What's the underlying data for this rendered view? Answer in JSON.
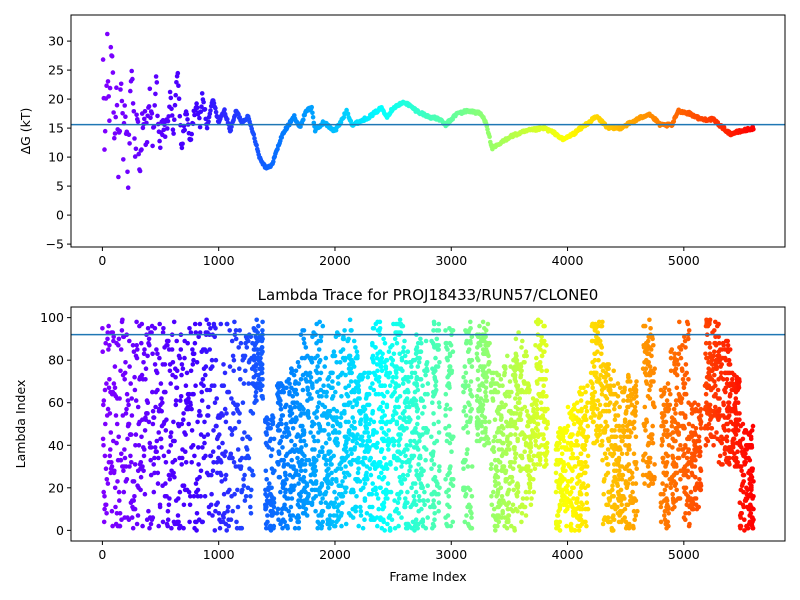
{
  "figure": {
    "colormap": "rainbow",
    "point_color_rule": "colour runs from red at frame 0 to violet at the last frame",
    "colormap_stops": [
      "#ff0000",
      "#ff7f00",
      "#ffff00",
      "#80ff80",
      "#00ffff",
      "#0080ff",
      "#4000ff",
      "#8000ff"
    ],
    "hline_color": "#1f77b4",
    "axes_color": "#000000"
  },
  "chart_data": [
    {
      "type": "scatter",
      "title": "",
      "xlabel": "",
      "ylabel": "ΔG (kT)",
      "xlim": [
        -270,
        5870
      ],
      "ylim": [
        -5.5,
        34.5
      ],
      "xticks": [
        0,
        1000,
        2000,
        3000,
        4000,
        5000
      ],
      "yticks": [
        -5,
        0,
        5,
        10,
        15,
        20,
        25,
        30
      ],
      "hline": 15.6,
      "grid": false,
      "legend": "none",
      "n_frames": 5600,
      "trace_anchors": [
        [
          0,
          34
        ],
        [
          20,
          10
        ],
        [
          40,
          28
        ],
        [
          60,
          18
        ],
        [
          80,
          32
        ],
        [
          100,
          15
        ],
        [
          120,
          22
        ],
        [
          140,
          8
        ],
        [
          160,
          21
        ],
        [
          180,
          11
        ],
        [
          200,
          20
        ],
        [
          220,
          5
        ],
        [
          250,
          27
        ],
        [
          280,
          12
        ],
        [
          300,
          17
        ],
        [
          320,
          5
        ],
        [
          350,
          19
        ],
        [
          380,
          13
        ],
        [
          410,
          20
        ],
        [
          440,
          12
        ],
        [
          460,
          26
        ],
        [
          490,
          10
        ],
        [
          520,
          16
        ],
        [
          550,
          14
        ],
        [
          580,
          20
        ],
        [
          610,
          15
        ],
        [
          650,
          25
        ],
        [
          680,
          12
        ],
        [
          720,
          17
        ],
        [
          760,
          13
        ],
        [
          800,
          19
        ],
        [
          840,
          16
        ],
        [
          860,
          21
        ],
        [
          900,
          15
        ],
        [
          950,
          20
        ],
        [
          1000,
          16
        ],
        [
          1050,
          18
        ],
        [
          1100,
          14.5
        ],
        [
          1150,
          18
        ],
        [
          1200,
          16
        ],
        [
          1250,
          17
        ],
        [
          1300,
          14
        ],
        [
          1350,
          10
        ],
        [
          1400,
          8.3
        ],
        [
          1450,
          8.3
        ],
        [
          1480,
          10
        ],
        [
          1550,
          14
        ],
        [
          1600,
          15.5
        ],
        [
          1650,
          17
        ],
        [
          1700,
          15
        ],
        [
          1750,
          18
        ],
        [
          1800,
          18.5
        ],
        [
          1830,
          14.5
        ],
        [
          1900,
          16
        ],
        [
          2000,
          14.5
        ],
        [
          2050,
          16
        ],
        [
          2100,
          18
        ],
        [
          2150,
          15.5
        ],
        [
          2200,
          16
        ],
        [
          2300,
          17
        ],
        [
          2400,
          18.5
        ],
        [
          2450,
          17
        ],
        [
          2500,
          18.5
        ],
        [
          2600,
          19.5
        ],
        [
          2700,
          18
        ],
        [
          2800,
          17
        ],
        [
          2900,
          16.5
        ],
        [
          2950,
          15.5
        ],
        [
          3050,
          17.5
        ],
        [
          3150,
          18
        ],
        [
          3250,
          17.5
        ],
        [
          3300,
          16
        ],
        [
          3350,
          11.5
        ],
        [
          3400,
          12
        ],
        [
          3500,
          13.5
        ],
        [
          3650,
          14.5
        ],
        [
          3800,
          15
        ],
        [
          3900,
          14
        ],
        [
          3960,
          13
        ],
        [
          4050,
          14
        ],
        [
          4150,
          15.5
        ],
        [
          4250,
          17
        ],
        [
          4350,
          15
        ],
        [
          4450,
          15
        ],
        [
          4550,
          16
        ],
        [
          4700,
          17.5
        ],
        [
          4800,
          15.5
        ],
        [
          4900,
          15.5
        ],
        [
          4950,
          18
        ],
        [
          5050,
          17.5
        ],
        [
          5150,
          16.5
        ],
        [
          5250,
          16.5
        ],
        [
          5400,
          14
        ],
        [
          5500,
          14.5
        ],
        [
          5600,
          15
        ]
      ],
      "early_noise_kT": 4.0,
      "early_noise_until_frame": 900
    },
    {
      "type": "scatter",
      "title": "Lambda Trace for PROJ18433/RUN57/CLONE0",
      "xlabel": "Frame Index",
      "ylabel": "Lambda Index",
      "xlim": [
        -270,
        5870
      ],
      "ylim": [
        -5,
        105
      ],
      "xticks": [
        0,
        1000,
        2000,
        3000,
        4000,
        5000
      ],
      "yticks": [
        0,
        20,
        40,
        60,
        80,
        100
      ],
      "hline": 92,
      "grid": false,
      "legend": "none",
      "n_frames": 5600,
      "lambda_range": [
        0,
        99
      ],
      "sampling_note": "frames up to ~1300 spread over the full lambda range; later frames cluster in vertical bands",
      "bands": [
        [
          1300,
          1380,
          60,
          99
        ],
        [
          1400,
          1480,
          0,
          55
        ],
        [
          1500,
          1600,
          0,
          70
        ],
        [
          1600,
          1700,
          0,
          80
        ],
        [
          1700,
          1800,
          5,
          95
        ],
        [
          1800,
          1900,
          0,
          99
        ],
        [
          1900,
          2000,
          0,
          85
        ],
        [
          2000,
          2100,
          0,
          95
        ],
        [
          2100,
          2200,
          5,
          99
        ],
        [
          2200,
          2300,
          0,
          75
        ],
        [
          2300,
          2400,
          0,
          99
        ],
        [
          2400,
          2500,
          0,
          90
        ],
        [
          2500,
          2600,
          0,
          99
        ],
        [
          2600,
          2700,
          0,
          85
        ],
        [
          2700,
          2800,
          0,
          95
        ],
        [
          2820,
          2900,
          0,
          99
        ],
        [
          2950,
          3020,
          0,
          95
        ],
        [
          3100,
          3180,
          0,
          99
        ],
        [
          3220,
          3330,
          40,
          99
        ],
        [
          3340,
          3450,
          0,
          75
        ],
        [
          3450,
          3550,
          0,
          85
        ],
        [
          3550,
          3650,
          0,
          95
        ],
        [
          3650,
          3720,
          10,
          70
        ],
        [
          3720,
          3830,
          30,
          99
        ],
        [
          3900,
          4000,
          0,
          50
        ],
        [
          4000,
          4100,
          0,
          60
        ],
        [
          4100,
          4180,
          0,
          70
        ],
        [
          4200,
          4300,
          40,
          99
        ],
        [
          4300,
          4400,
          0,
          80
        ],
        [
          4400,
          4500,
          0,
          70
        ],
        [
          4500,
          4600,
          0,
          75
        ],
        [
          4650,
          4750,
          20,
          99
        ],
        [
          4800,
          4880,
          0,
          70
        ],
        [
          4880,
          4960,
          10,
          85
        ],
        [
          4960,
          5050,
          0,
          99
        ],
        [
          5060,
          5150,
          10,
          60
        ],
        [
          5180,
          5300,
          40,
          99
        ],
        [
          5300,
          5400,
          30,
          90
        ],
        [
          5400,
          5480,
          30,
          75
        ],
        [
          5480,
          5600,
          0,
          50
        ]
      ]
    }
  ]
}
